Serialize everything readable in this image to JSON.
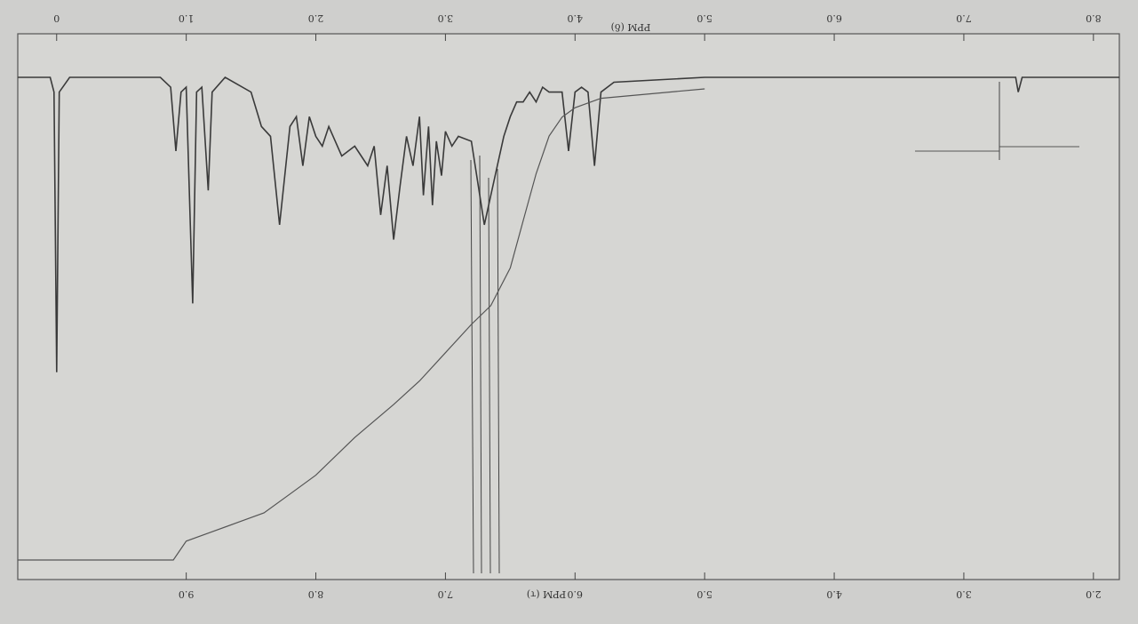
{
  "chart_data": {
    "type": "line",
    "x_label": "PPM (δ)",
    "x2_label": "PPM (τ)",
    "xlim": [
      -0.3,
      8.2
    ],
    "xticks": [
      0,
      {
        "value": 1,
        "label": "1.0"
      },
      {
        "value": 2,
        "label": "2.0"
      },
      {
        "value": 3,
        "label": "3.0"
      },
      {
        "value": 4,
        "label": "4.0"
      },
      {
        "value": 5,
        "label": "5.0"
      },
      {
        "value": 6,
        "label": "6.0"
      },
      {
        "value": 7,
        "label": "7.0"
      },
      {
        "value": 8,
        "label": "8.0"
      }
    ],
    "x2lim": [
      10.3,
      1.8
    ],
    "x2ticks": [
      {
        "value": 9,
        "label": "9.0"
      },
      {
        "value": 8,
        "label": "8.0"
      },
      {
        "value": 7,
        "label": "7.0"
      },
      {
        "value": 6,
        "label": "6.0"
      },
      {
        "value": 5,
        "label": "5.0"
      },
      {
        "value": 4,
        "label": "4.0"
      },
      {
        "value": 3,
        "label": "3.0"
      },
      {
        "value": 2,
        "label": "2.0"
      }
    ],
    "ylim": [
      0,
      100
    ],
    "series": [
      {
        "color": "#3a3a3a",
        "x": [
          -0.3,
          -0.05,
          -0.02,
          0,
          0.02,
          0.1,
          0.8,
          0.88,
          0.92,
          0.96,
          1.0,
          1.05,
          1.08,
          1.12,
          1.17,
          1.2,
          1.3,
          1.5,
          1.58,
          1.65,
          1.72,
          1.8,
          1.85,
          1.9,
          1.95,
          2.0,
          2.05,
          2.1,
          2.2,
          2.3,
          2.4,
          2.45,
          2.5,
          2.55,
          2.6,
          2.65,
          2.7,
          2.75,
          2.8,
          2.83,
          2.87,
          2.9,
          2.93,
          2.97,
          3.0,
          3.05,
          3.1,
          3.2,
          3.3,
          3.4,
          3.45,
          3.5,
          3.55,
          3.6,
          3.65,
          3.7,
          3.75,
          3.8,
          3.9,
          3.95,
          4.0,
          4.05,
          4.1,
          4.15,
          4.2,
          4.3,
          5.0,
          7.0,
          7.4,
          7.42,
          7.45,
          8.2
        ],
        "values": [
          0,
          0,
          3,
          60,
          3,
          0,
          0,
          2,
          15,
          3,
          2,
          46,
          3,
          2,
          23,
          3,
          0,
          3,
          10,
          12,
          30,
          10,
          8,
          18,
          8,
          12,
          14,
          10,
          16,
          14,
          18,
          14,
          28,
          18,
          33,
          22,
          12,
          18,
          8,
          24,
          10,
          26,
          13,
          20,
          11,
          14,
          12,
          13,
          30,
          18,
          12,
          8,
          5,
          5,
          3,
          5,
          2,
          3,
          3,
          15,
          3,
          2,
          3,
          18,
          3,
          1,
          0,
          0,
          0,
          3,
          0,
          0
        ]
      },
      {
        "color": "#555555",
        "x": [
          -0.3,
          0.9,
          1.0,
          1.2,
          1.4,
          1.6,
          1.8,
          2.0,
          2.3,
          2.6,
          2.8,
          3.0,
          3.2,
          3.35,
          3.5,
          3.6,
          3.7,
          3.8,
          3.9,
          4.0,
          4.2,
          5.0
        ],
        "values": [
          0,
          0,
          4,
          6,
          8,
          10,
          14,
          18,
          26,
          33,
          38,
          44,
          50,
          54,
          62,
          72,
          82,
          90,
          94,
          96,
          98,
          100
        ]
      }
    ]
  }
}
